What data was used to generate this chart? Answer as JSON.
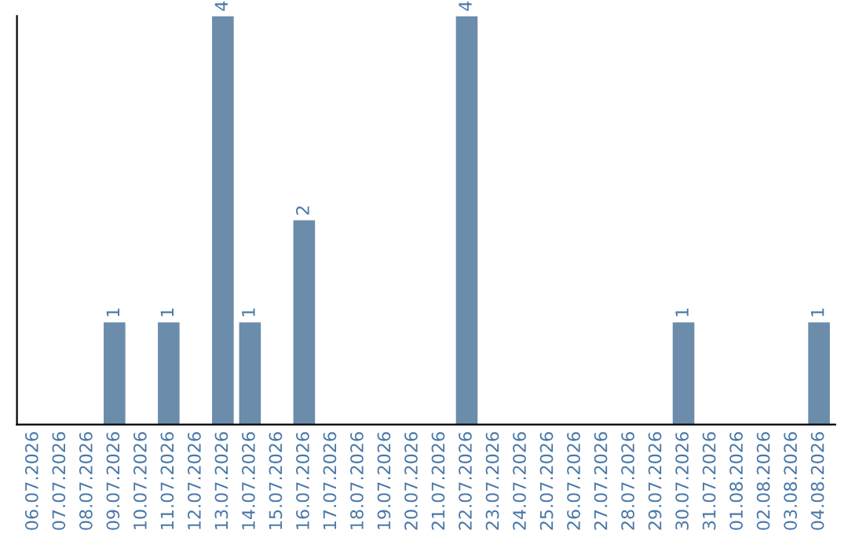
{
  "chart_data": {
    "type": "bar",
    "categories": [
      "06.07.2026",
      "07.07.2026",
      "08.07.2026",
      "09.07.2026",
      "10.07.2026",
      "11.07.2026",
      "12.07.2026",
      "13.07.2026",
      "14.07.2026",
      "15.07.2026",
      "16.07.2026",
      "17.07.2026",
      "18.07.2026",
      "19.07.2026",
      "20.07.2026",
      "21.07.2026",
      "22.07.2026",
      "23.07.2026",
      "24.07.2026",
      "25.07.2026",
      "26.07.2026",
      "27.07.2026",
      "28.07.2026",
      "29.07.2026",
      "30.07.2026",
      "31.07.2026",
      "01.08.2026",
      "02.08.2026",
      "03.08.2026",
      "04.08.2026"
    ],
    "values": [
      0,
      0,
      0,
      1,
      0,
      1,
      0,
      4,
      1,
      0,
      2,
      0,
      0,
      0,
      0,
      0,
      4,
      0,
      0,
      0,
      0,
      0,
      0,
      0,
      1,
      0,
      0,
      0,
      0,
      1
    ],
    "value_labels": [
      null,
      null,
      null,
      "1",
      null,
      "1",
      null,
      "4",
      "1",
      null,
      "2",
      null,
      null,
      null,
      null,
      null,
      "4",
      null,
      null,
      null,
      null,
      null,
      null,
      null,
      "1",
      null,
      null,
      null,
      null,
      "1"
    ],
    "color": "#6b8cab",
    "grid": false,
    "legend": false
  }
}
